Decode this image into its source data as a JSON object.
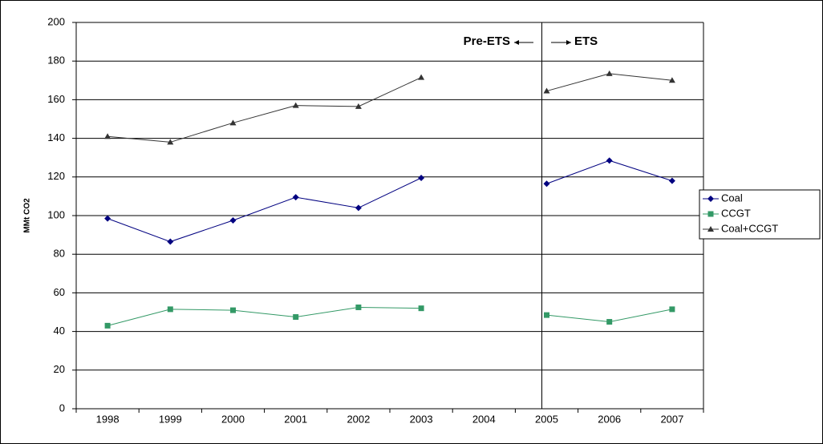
{
  "chart_data": {
    "type": "line",
    "y_label": "MMt CO2",
    "categories": [
      "1998",
      "1999",
      "2000",
      "2001",
      "2002",
      "2003",
      "2004",
      "2005",
      "2006",
      "2007"
    ],
    "series": [
      {
        "name": "Coal",
        "color": "#000080",
        "marker": "diamond",
        "values": [
          98.5,
          86.5,
          97.5,
          109.5,
          104,
          119.5,
          null,
          116.5,
          128.5,
          118
        ]
      },
      {
        "name": "CCGT",
        "color": "#339966",
        "marker": "square",
        "values": [
          43,
          51.5,
          51,
          47.5,
          52.5,
          52,
          null,
          48.5,
          45,
          51.5
        ]
      },
      {
        "name": "Coal+CCGT",
        "color": "#333333",
        "marker": "triangle",
        "values": [
          141,
          138,
          148,
          157,
          156.5,
          171.5,
          null,
          164.5,
          173.5,
          170
        ]
      }
    ],
    "annotations": [
      "Pre-ETS",
      "ETS"
    ],
    "ylim": [
      0,
      200
    ],
    "yticks": [
      0,
      20,
      40,
      60,
      80,
      100,
      120,
      140,
      160,
      180,
      200
    ],
    "grid": true,
    "legend": "right"
  }
}
